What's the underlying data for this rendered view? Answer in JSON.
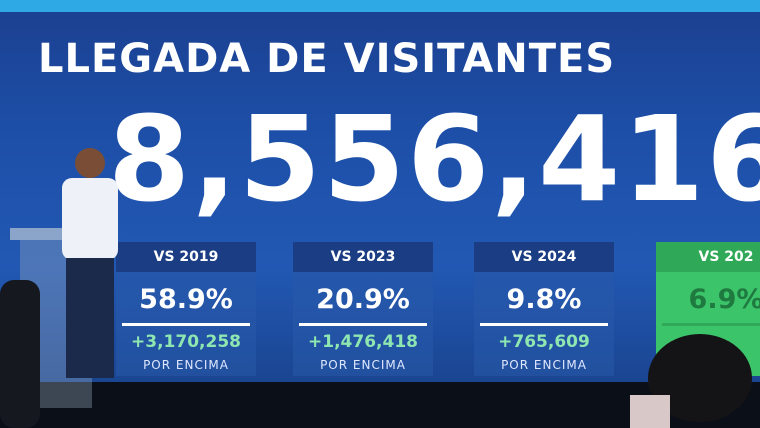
{
  "title": "LLEGADA DE VISITANTES",
  "total": "8,556,416",
  "cards": [
    {
      "label": "VS 2019",
      "percent": "58.9%",
      "increase": "+3,170,258",
      "note": "POR ENCIMA"
    },
    {
      "label": "VS 2023",
      "percent": "20.9%",
      "increase": "+1,476,418",
      "note": "POR ENCIMA"
    },
    {
      "label": "VS 2024",
      "percent": "9.8%",
      "increase": "+765,609",
      "note": "POR ENCIMA"
    },
    {
      "label": "VS 202",
      "percent": "6.9%"
    }
  ]
}
